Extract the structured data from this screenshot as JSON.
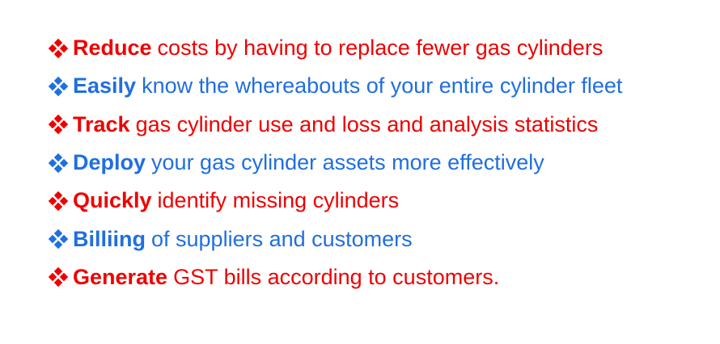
{
  "colors": {
    "red": "#ee0000",
    "blue": "#1f6fe0"
  },
  "icon": "four-diamond-bullet-icon",
  "items": [
    {
      "keyword": "Reduce",
      "text": "costs by having to replace fewer gas cylinders",
      "color": "red"
    },
    {
      "keyword": "Easily",
      "text": "know the whereabouts of your entire cylinder fleet",
      "color": "blue"
    },
    {
      "keyword": "Track",
      "text": "gas cylinder use and loss and analysis statistics",
      "color": "red"
    },
    {
      "keyword": "Deploy",
      "text": "your gas cylinder assets more effectively",
      "color": "blue"
    },
    {
      "keyword": "Quickly",
      "text": "identify missing cylinders",
      "color": "red"
    },
    {
      "keyword": "Billiing",
      "text": "of suppliers and customers",
      "color": "blue"
    },
    {
      "keyword": "Generate",
      "text": "GST bills according to customers.",
      "color": "red"
    }
  ]
}
